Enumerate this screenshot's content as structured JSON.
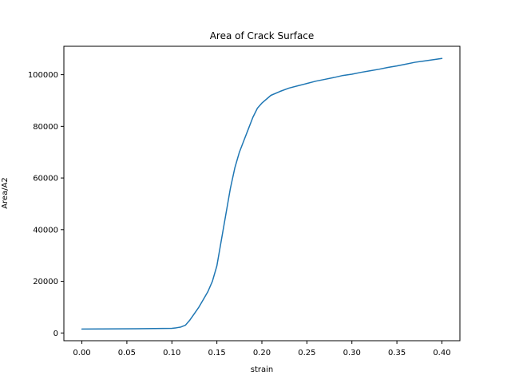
{
  "chart_data": {
    "type": "line",
    "title": "Area of Crack Surface",
    "xlabel": "strain",
    "ylabel": "Area/A2",
    "xlim": [
      -0.02,
      0.42
    ],
    "ylim": [
      -3000,
      111000
    ],
    "xticks": [
      0.0,
      0.05,
      0.1,
      0.15,
      0.2,
      0.25,
      0.3,
      0.35,
      0.4
    ],
    "xtick_labels": [
      "0.00",
      "0.05",
      "0.10",
      "0.15",
      "0.20",
      "0.25",
      "0.30",
      "0.35",
      "0.40"
    ],
    "yticks": [
      0,
      20000,
      40000,
      60000,
      80000,
      100000
    ],
    "ytick_labels": [
      "0",
      "20000",
      "40000",
      "60000",
      "80000",
      "100000"
    ],
    "grid": false,
    "series": [
      {
        "color": "#1f77b4",
        "x": [
          0.0,
          0.02,
          0.04,
          0.06,
          0.08,
          0.09,
          0.1,
          0.105,
          0.11,
          0.115,
          0.12,
          0.125,
          0.13,
          0.135,
          0.14,
          0.145,
          0.15,
          0.155,
          0.16,
          0.165,
          0.17,
          0.175,
          0.18,
          0.185,
          0.19,
          0.195,
          0.2,
          0.21,
          0.22,
          0.23,
          0.24,
          0.25,
          0.26,
          0.27,
          0.28,
          0.29,
          0.3,
          0.31,
          0.32,
          0.33,
          0.34,
          0.35,
          0.36,
          0.37,
          0.38,
          0.39,
          0.4
        ],
        "y": [
          1500,
          1550,
          1600,
          1650,
          1700,
          1750,
          1800,
          2000,
          2300,
          3000,
          5000,
          7500,
          10000,
          13000,
          16000,
          20000,
          26000,
          36000,
          46000,
          56000,
          64000,
          70000,
          74500,
          79000,
          83500,
          87000,
          89000,
          92000,
          93500,
          94800,
          95700,
          96600,
          97500,
          98200,
          98900,
          99700,
          100200,
          100900,
          101500,
          102100,
          102800,
          103400,
          104100,
          104800,
          105300,
          105800,
          106300
        ]
      }
    ]
  }
}
